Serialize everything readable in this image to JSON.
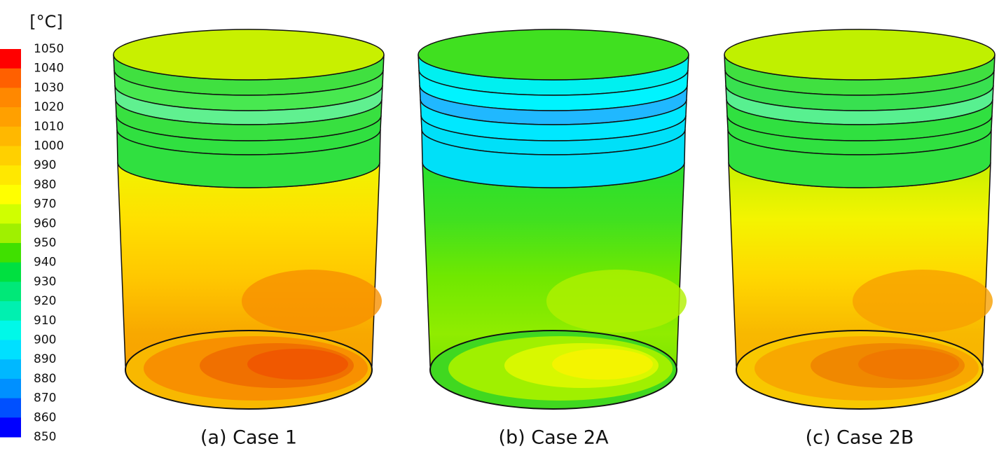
{
  "colorbar": {
    "unit": "[°C]",
    "ticks": [
      1050,
      1040,
      1030,
      1020,
      1010,
      1000,
      990,
      980,
      970,
      960,
      950,
      940,
      930,
      920,
      910,
      900,
      890,
      880,
      870,
      860,
      850
    ],
    "colors": [
      "#ff0000",
      "#ff6000",
      "#ff8800",
      "#ffa000",
      "#ffb800",
      "#ffd000",
      "#ffe800",
      "#ffff00",
      "#d0ff00",
      "#a0f000",
      "#40e000",
      "#00e040",
      "#00e878",
      "#00f0b0",
      "#00f8e8",
      "#00e0ff",
      "#00b8ff",
      "#0090ff",
      "#0050ff",
      "#0000ff"
    ]
  },
  "panels": [
    {
      "caption": "(a) Case 1"
    },
    {
      "caption": "(b) Case 2A"
    },
    {
      "caption": "(c) Case 2B"
    }
  ]
}
